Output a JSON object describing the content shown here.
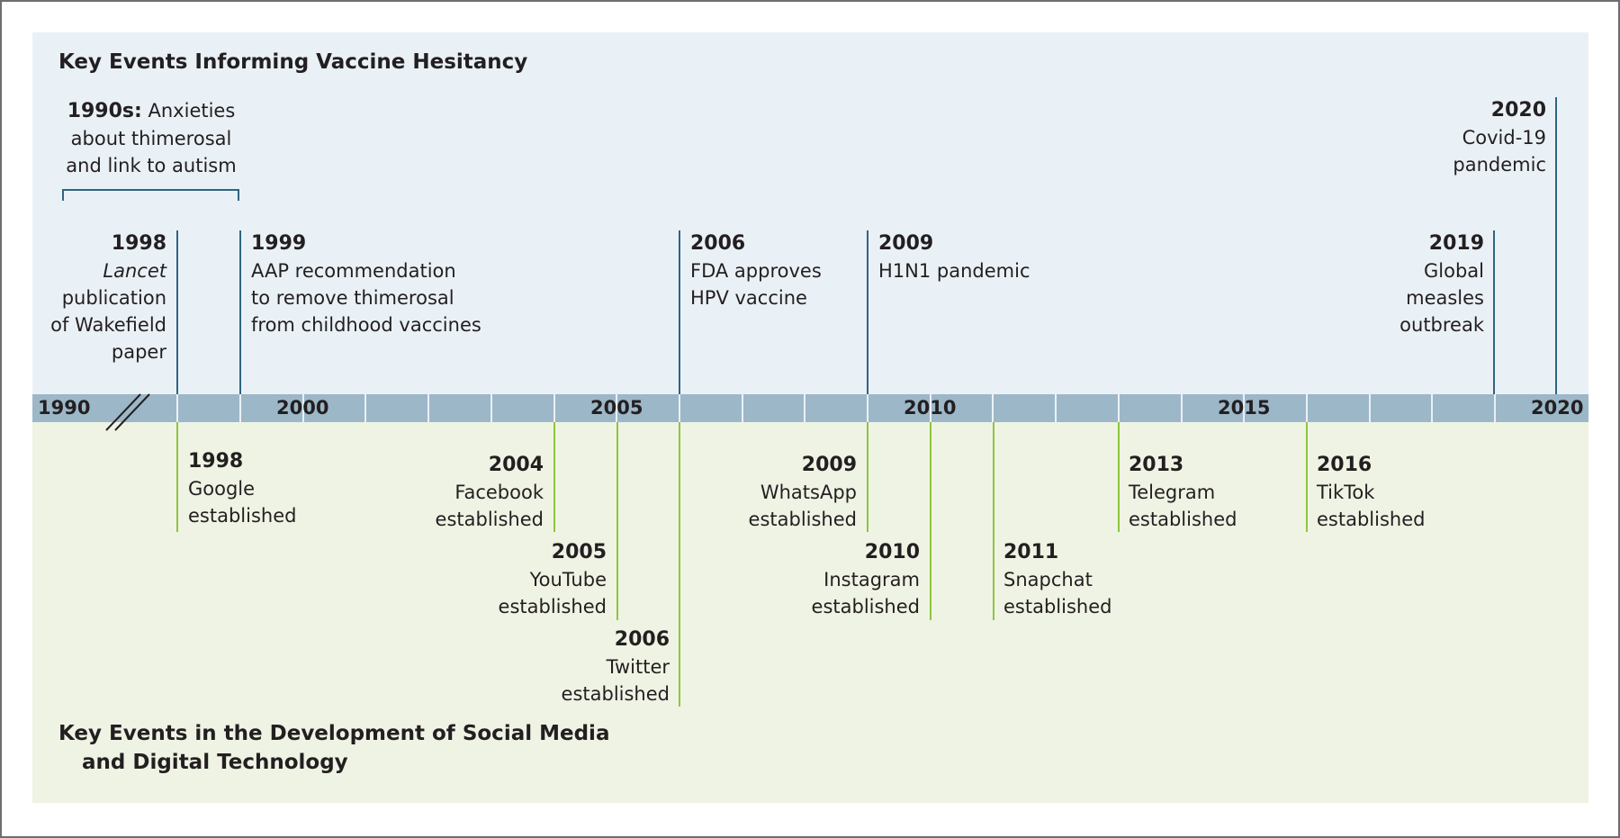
{
  "top_title": "Key Events Informing Vaccine Hesitancy",
  "bottom_title_line1": "Key Events in the Development of Social Media",
  "bottom_title_line2": "and Digital Technology",
  "axis_labels": [
    "1990",
    "2000",
    "2005",
    "2010",
    "2015",
    "2020"
  ],
  "nineties": {
    "year": "1990s:",
    "line1": "Anxieties",
    "line2": "about thimerosal",
    "line3": "and link to autism"
  },
  "vaccine_events": [
    {
      "year": "1998",
      "lines": [
        "Lancet",
        "publication",
        "of Wakefield",
        "paper"
      ]
    },
    {
      "year": "1999",
      "lines": [
        "AAP recommendation",
        "to remove thimerosal",
        "from childhood vaccines"
      ]
    },
    {
      "year": "2006",
      "lines": [
        "FDA approves",
        "HPV vaccine"
      ]
    },
    {
      "year": "2009",
      "lines": [
        "H1N1 pandemic"
      ]
    },
    {
      "year": "2019",
      "lines": [
        "Global",
        "measles",
        "outbreak"
      ]
    },
    {
      "year": "2020",
      "lines": [
        "Covid-19",
        "pandemic"
      ]
    }
  ],
  "social_events": [
    {
      "year": "1998",
      "lines": [
        "Google",
        "established"
      ]
    },
    {
      "year": "2004",
      "lines": [
        "Facebook",
        "established"
      ]
    },
    {
      "year": "2005",
      "lines": [
        "YouTube",
        "established"
      ]
    },
    {
      "year": "2006",
      "lines": [
        "Twitter",
        "established"
      ]
    },
    {
      "year": "2009",
      "lines": [
        "WhatsApp",
        "established"
      ]
    },
    {
      "year": "2010",
      "lines": [
        "Instagram",
        "established"
      ]
    },
    {
      "year": "2011",
      "lines": [
        "Snapchat",
        "established"
      ]
    },
    {
      "year": "2013",
      "lines": [
        "Telegram",
        "established"
      ]
    },
    {
      "year": "2016",
      "lines": [
        "TikTok",
        "established"
      ]
    }
  ],
  "colors": {
    "top_panel": "#eaf1f6",
    "bottom_panel": "#eff3e4",
    "bar": "#9cb7c8",
    "vaccine_line": "#2f6581",
    "social_line": "#8dc63f"
  }
}
